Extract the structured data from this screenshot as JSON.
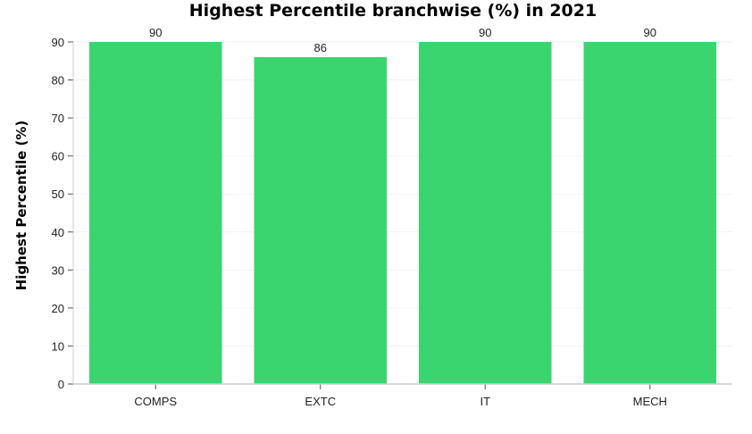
{
  "chart_data": {
    "type": "bar",
    "title": "Highest Percentile branchwise (%) in 2021",
    "xlabel": "",
    "ylabel": "Highest Percentile (%)",
    "categories": [
      "COMPS",
      "EXTC",
      "IT",
      "MECH"
    ],
    "values": [
      90,
      86,
      90,
      90
    ],
    "data_labels": [
      "90",
      "86",
      "90",
      "90"
    ],
    "ylim": [
      0,
      90
    ],
    "yticks": [
      "0",
      "10",
      "20",
      "30",
      "40",
      "50",
      "60",
      "70",
      "80",
      "90"
    ],
    "grid": "horizontal-faint",
    "legend": "none",
    "bar_color": "#3bd56f",
    "axis_color": "#cccccc",
    "grid_color": "#f2f2f2"
  }
}
